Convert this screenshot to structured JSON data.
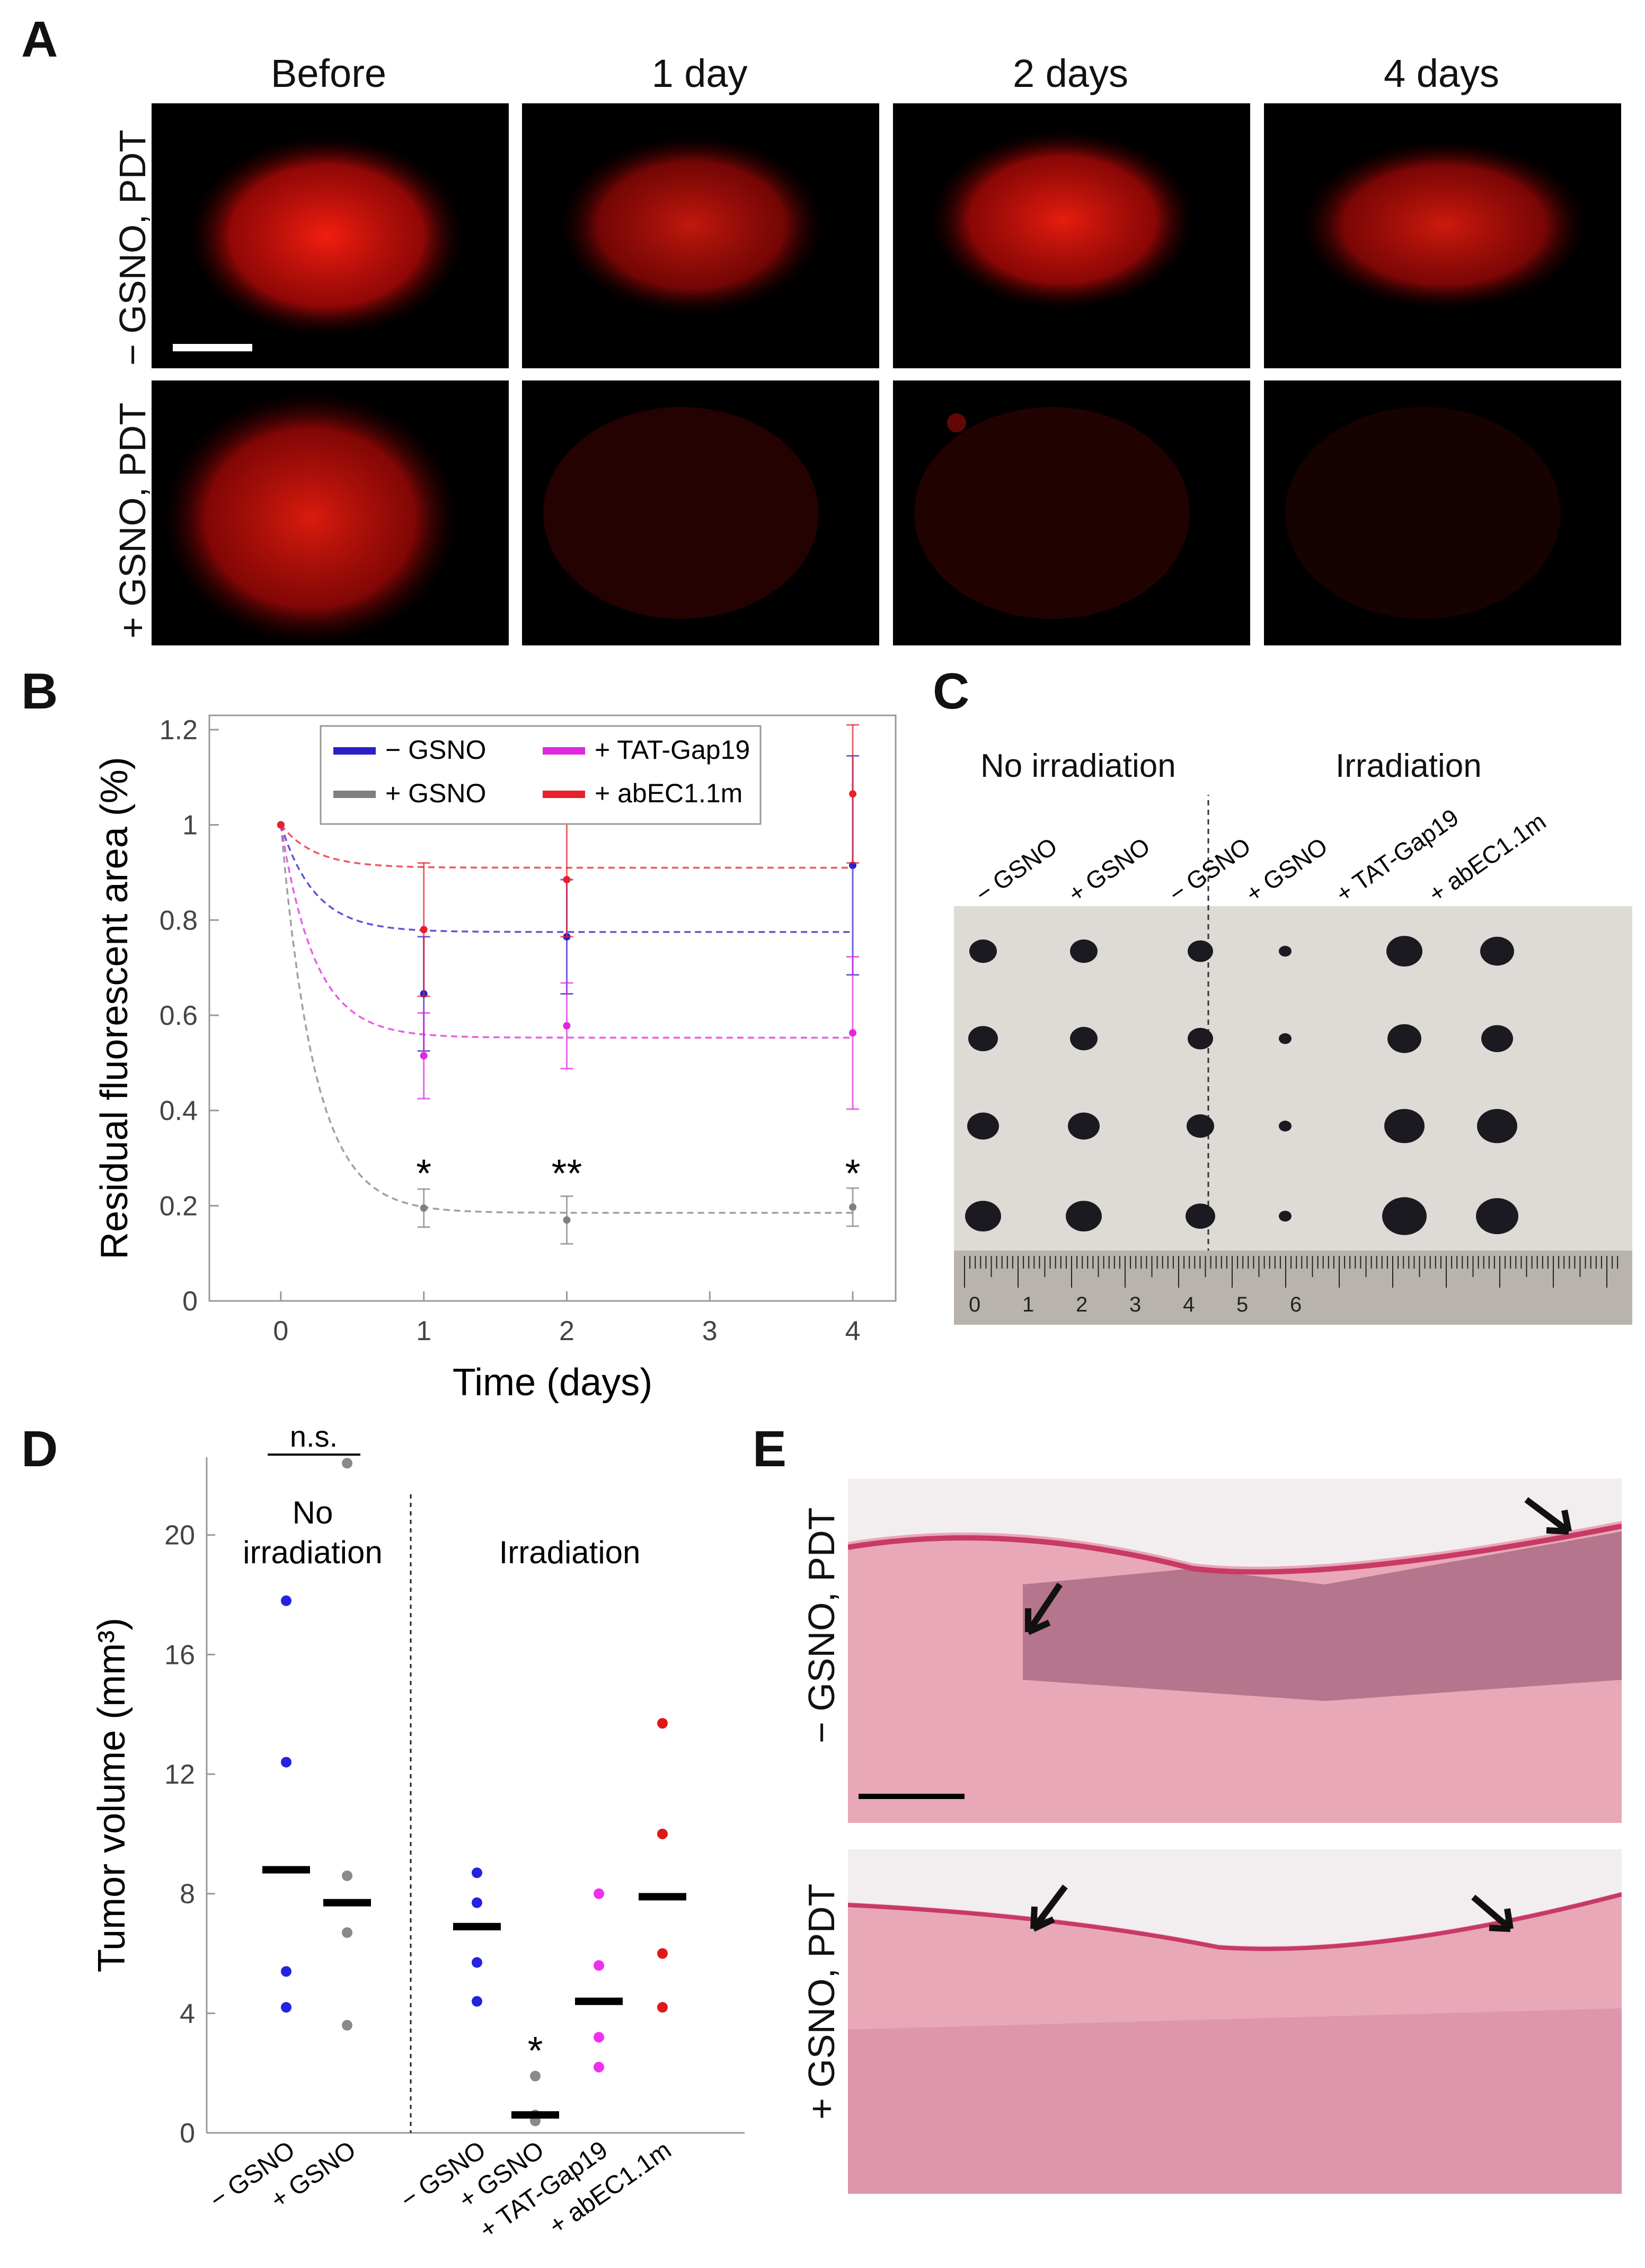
{
  "panel_labels": {
    "a": "A",
    "b": "B",
    "c": "C",
    "d": "D",
    "e": "E"
  },
  "panel_a": {
    "col_titles": [
      "Before",
      "1 day",
      "2 days",
      "4 days"
    ],
    "row_labels": [
      "− GSNO, PDT",
      "+ GSNO, PDT"
    ],
    "image_color": "#ff1a10"
  },
  "chart_data": [
    {
      "type": "line",
      "panel": "B",
      "xlabel": "Time (days)",
      "ylabel": "Residual fluorescent area (%)",
      "xlim": [
        -0.5,
        4.3
      ],
      "ylim": [
        0,
        1.23
      ],
      "x_ticks": [
        "0",
        "1",
        "2",
        "3",
        "4"
      ],
      "y_ticks": [
        "0",
        "0.2",
        "0.4",
        "0.6",
        "0.8",
        "1",
        "1.2"
      ],
      "legend_position": "top-center",
      "series": [
        {
          "name": "− GSNO",
          "color": "#2a1fc7",
          "x": [
            0,
            1,
            2,
            4
          ],
          "y": [
            1.0,
            0.645,
            0.765,
            0.915
          ],
          "err": [
            0,
            0.12,
            0.12,
            0.23
          ],
          "fit_plateau": 0.775
        },
        {
          "name": "+ GSNO",
          "color": "#808080",
          "x": [
            0,
            1,
            2,
            4
          ],
          "y": [
            1.0,
            0.195,
            0.17,
            0.197
          ],
          "err": [
            0,
            0.04,
            0.05,
            0.04
          ],
          "fit_plateau": 0.185
        },
        {
          "name": "+ TAT-Gap19",
          "color": "#e028e0",
          "x": [
            0,
            1,
            2,
            4
          ],
          "y": [
            1.0,
            0.515,
            0.578,
            0.563
          ],
          "err": [
            0,
            0.09,
            0.09,
            0.16
          ],
          "fit_plateau": 0.553
        },
        {
          "name": "+ abEC1.1m",
          "color": "#e8202a",
          "x": [
            0,
            1,
            2,
            4
          ],
          "y": [
            1.0,
            0.78,
            0.885,
            1.065
          ],
          "err": [
            0,
            0.14,
            0.12,
            0.145
          ],
          "fit_plateau": 0.91
        }
      ],
      "annotations": [
        {
          "x": 1,
          "text": "*"
        },
        {
          "x": 2,
          "text": "**"
        },
        {
          "x": 4,
          "text": "*"
        }
      ]
    },
    {
      "type": "scatter",
      "panel": "D",
      "ylabel": "Tumor volume (mm³)",
      "ylim": [
        0,
        22.6
      ],
      "y_ticks": [
        "0",
        "4",
        "8",
        "12",
        "16",
        "20"
      ],
      "categories": [
        "− GSNO",
        "+ GSNO",
        "− GSNO",
        "+ GSNO",
        "+ TAT-Gap19",
        "+ abEC1.1m"
      ],
      "group_titles": [
        [
          "No",
          "irradiation"
        ],
        [
          "Irradiation"
        ]
      ],
      "significance": {
        "no_irr": "n.s.",
        "irr_gsno": "*"
      },
      "series": [
        {
          "category": "− GSNO",
          "group": "No irradiation",
          "color": "#2323e0",
          "points": [
            17.8,
            12.4,
            5.4,
            4.2
          ],
          "mean": 8.8
        },
        {
          "category": "+ GSNO",
          "group": "No irradiation",
          "color": "#8a8a8a",
          "points": [
            22.4,
            8.6,
            6.7,
            3.6
          ],
          "mean": 7.7
        },
        {
          "category": "− GSNO",
          "group": "Irradiation",
          "color": "#2323e0",
          "points": [
            8.7,
            7.7,
            5.7,
            4.4
          ],
          "mean": 6.9
        },
        {
          "category": "+ GSNO",
          "group": "Irradiation",
          "color": "#8a8a8a",
          "points": [
            1.9,
            0.6,
            0.5,
            0.4
          ],
          "mean": 0.6
        },
        {
          "category": "+ TAT-Gap19",
          "group": "Irradiation",
          "color": "#f02ef0",
          "points": [
            8.0,
            5.6,
            3.2,
            2.2
          ],
          "mean": 4.4
        },
        {
          "category": "+ abEC1.1m",
          "group": "Irradiation",
          "color": "#e01818",
          "points": [
            13.7,
            10.0,
            6.0,
            4.2
          ],
          "mean": 7.9
        }
      ]
    }
  ],
  "panel_c": {
    "group_titles": [
      "No irradiation",
      "Irradiation"
    ],
    "column_labels": [
      "− GSNO",
      "+ GSNO",
      "− GSNO",
      "+ GSNO",
      "+ TAT-Gap19",
      "+ abEC1.1m"
    ],
    "ruler_numbers": [
      "0",
      "1",
      "2",
      "3",
      "4",
      "5",
      "6"
    ]
  },
  "panel_e": {
    "row_labels": [
      "− GSNO, PDT",
      "+ GSNO, PDT"
    ],
    "tissue_color": "#e8a8b8",
    "stain_color": "#c83a66"
  }
}
